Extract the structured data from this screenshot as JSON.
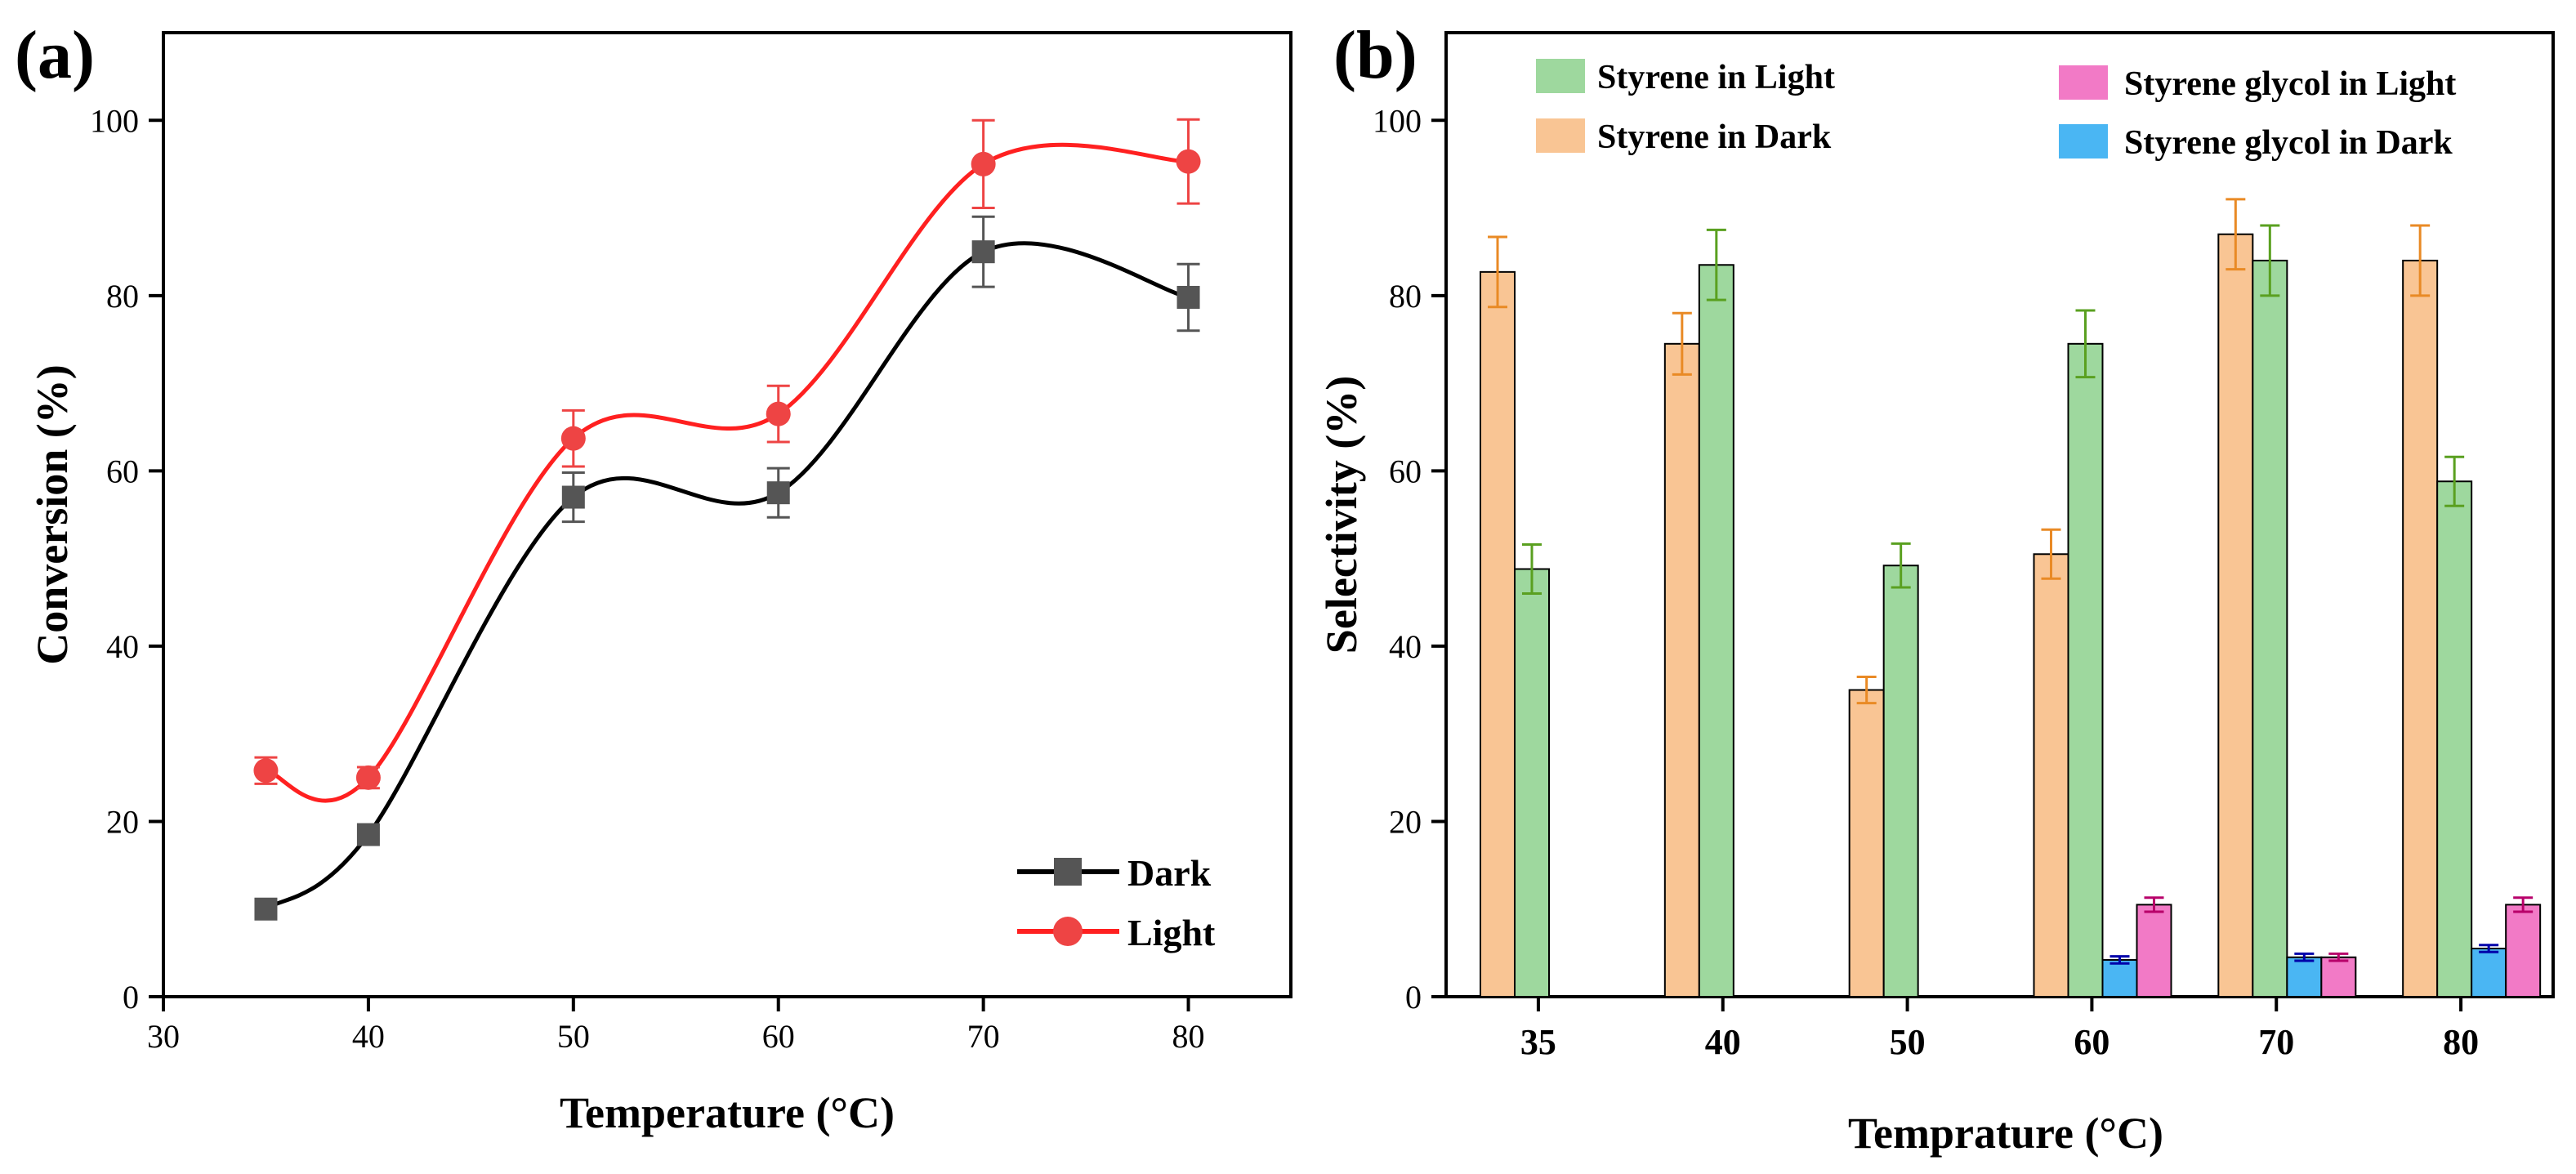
{
  "chart_data": [
    {
      "panel": "(a)",
      "type": "line",
      "xlabel": "Temperature (°C)",
      "ylabel": "Conversion (%)",
      "xlim": [
        30,
        85
      ],
      "ylim": [
        0,
        110
      ],
      "xticks": [
        30,
        40,
        50,
        60,
        70,
        80
      ],
      "yticks": [
        0,
        20,
        40,
        60,
        80,
        100
      ],
      "x": [
        35,
        40,
        50,
        60,
        70,
        80
      ],
      "legend_position": "bottom-right",
      "series": [
        {
          "name": "Dark",
          "color": "#000000",
          "marker_color": "#555555",
          "marker": "square",
          "values": [
            10,
            18.5,
            57,
            57.5,
            85,
            79.8
          ],
          "errors": [
            0,
            0,
            2.8,
            2.8,
            4,
            3.8
          ]
        },
        {
          "name": "Light",
          "color": "#ff2020",
          "marker_color": "#ee4444",
          "marker": "circle",
          "values": [
            25.8,
            25,
            63.7,
            66.5,
            95,
            95.3
          ],
          "errors": [
            1.5,
            1.2,
            3.2,
            3.2,
            5,
            4.8
          ]
        }
      ]
    },
    {
      "panel": "(b)",
      "type": "bar",
      "xlabel": "Temprature (°C)",
      "ylabel": "Selectivity (%)",
      "ylim": [
        0,
        110
      ],
      "yticks": [
        0,
        20,
        40,
        60,
        80,
        100
      ],
      "categories": [
        "35",
        "40",
        "50",
        "60",
        "70",
        "80"
      ],
      "legend_position": "top",
      "series": [
        {
          "name": "Styrene in Dark",
          "color": "#f9c594",
          "err_color": "#e98a25",
          "values": [
            82.7,
            74.5,
            35,
            50.5,
            87,
            84
          ],
          "errors": [
            4,
            3.5,
            1.5,
            2.8,
            4,
            4
          ]
        },
        {
          "name": "Styrene in Light",
          "color": "#9ed89e",
          "err_color": "#5aa020",
          "values": [
            48.8,
            83.5,
            49.2,
            74.5,
            84,
            58.8
          ],
          "errors": [
            2.8,
            4,
            2.5,
            3.8,
            4,
            2.8
          ]
        },
        {
          "name": "Styrene glycol in Dark",
          "color": "#4ab6f3",
          "err_color": "#0000aa",
          "values": [
            null,
            null,
            null,
            4.2,
            4.5,
            5.5
          ],
          "errors": [
            0,
            0,
            0,
            0.4,
            0.4,
            0.4
          ]
        },
        {
          "name": "Styrene glycol in Light",
          "color": "#f27ac6",
          "err_color": "#b8006a",
          "values": [
            null,
            null,
            null,
            10.5,
            4.5,
            10.5
          ],
          "errors": [
            0,
            0,
            0,
            0.8,
            0.4,
            0.8
          ]
        }
      ]
    }
  ]
}
